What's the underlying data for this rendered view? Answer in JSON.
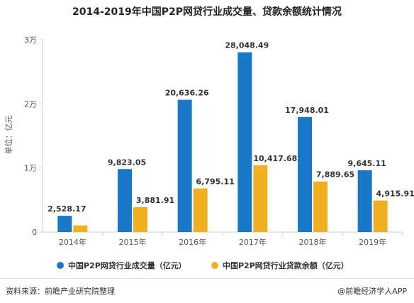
{
  "title": "2014-2019年中国P2P网贷行业成交量、贷款余额统计情况",
  "footer": {
    "source": "资料来源：前瞻产业研究院整理",
    "brand": "@前瞻经济学人APP"
  },
  "chart_data": {
    "type": "bar",
    "title": "2014-2019年中国P2P网贷行业成交量、贷款余额统计情况",
    "ylabel": "单位：亿元",
    "xlabel": "",
    "categories": [
      "2014年",
      "2015年",
      "2016年",
      "2017年",
      "2018年",
      "2019年"
    ],
    "ylim": [
      0,
      30000
    ],
    "yticks": [
      {
        "value": 0,
        "label": "0"
      },
      {
        "value": 10000,
        "label": "1万"
      },
      {
        "value": 20000,
        "label": "2万"
      },
      {
        "value": 30000,
        "label": "3万"
      }
    ],
    "grid": false,
    "legend_position": "bottom",
    "series": [
      {
        "name": "中国P2P网贷行业成交量（亿元）",
        "color": "#1a78c9",
        "values": [
          2528.17,
          9823.05,
          20636.26,
          28048.49,
          17948.01,
          9645.11
        ],
        "labels": [
          "2,528.17",
          "9,823.05",
          "20,636.26",
          "28,048.49",
          "17,948.01",
          "9,645.11"
        ]
      },
      {
        "name": "中国P2P网贷行业贷款余额（亿元）",
        "color": "#f0b020",
        "values": [
          1036,
          3881.91,
          6795.11,
          10417.68,
          7889.65,
          4915.91
        ],
        "labels": [
          "",
          "3,881.91",
          "6,795.11",
          "10,417.68",
          "7,889.65",
          "4,915.91"
        ]
      }
    ]
  }
}
